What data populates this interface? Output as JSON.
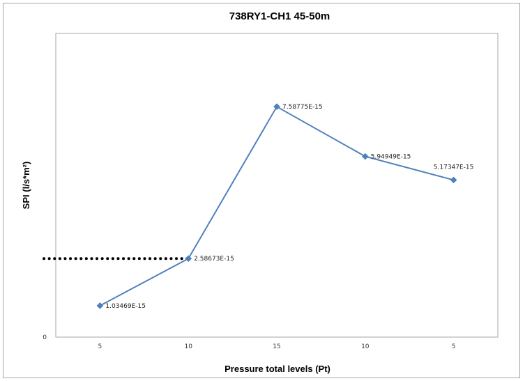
{
  "chart_data": {
    "type": "line",
    "title": "738RY1-CH1 45-50m",
    "xlabel": "Pressure total levels (Pt)",
    "ylabel": "SPI (l/s*m²)",
    "categories": [
      "5",
      "10",
      "15",
      "10",
      "5"
    ],
    "values": [
      1.03469e-15,
      2.58673e-15,
      7.58775e-15,
      5.94949e-15,
      5.17347e-15
    ],
    "data_labels": [
      "1.03469E-15",
      "2.58673E-15",
      "7.58775E-15",
      "5.94949E-15",
      "5.17347E-15"
    ],
    "y_tick_labels": [
      "0"
    ],
    "ylim": [
      0,
      1e-14
    ],
    "grid": false,
    "reference_line": {
      "style": "dotted",
      "y": 2.58673e-15
    },
    "series_color": "#4f81bd"
  }
}
